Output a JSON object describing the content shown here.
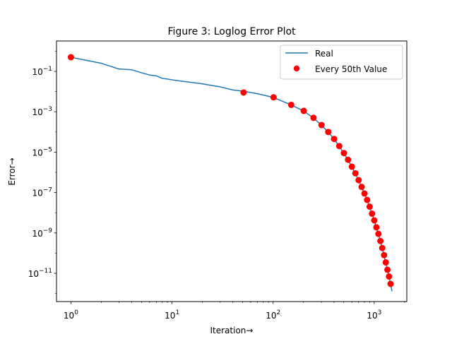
{
  "chart_data": {
    "type": "line",
    "title": "Figure 3: Loglog Error Plot",
    "xlabel": "Iteration→",
    "ylabel": "Error→",
    "xscale": "log",
    "yscale": "log",
    "xlim": [
      0.72,
      2100
    ],
    "ylim": [
      4e-13,
      3.2
    ],
    "grid": false,
    "legend_position": "top-right",
    "x_ticks": [
      {
        "value": 1,
        "base": "10",
        "exp": "0"
      },
      {
        "value": 10,
        "base": "10",
        "exp": "1"
      },
      {
        "value": 100,
        "base": "10",
        "exp": "2"
      },
      {
        "value": 1000,
        "base": "10",
        "exp": "3"
      }
    ],
    "y_ticks": [
      {
        "value": 0.1,
        "base": "10",
        "exp": "−1"
      },
      {
        "value": 0.001,
        "base": "10",
        "exp": "−3"
      },
      {
        "value": 1e-05,
        "base": "10",
        "exp": "−5"
      },
      {
        "value": 1e-07,
        "base": "10",
        "exp": "−7"
      },
      {
        "value": 1e-09,
        "base": "10",
        "exp": "−9"
      },
      {
        "value": 1e-11,
        "base": "10",
        "exp": "−11"
      }
    ],
    "series": [
      {
        "name": "Real",
        "kind": "line",
        "color": "#1f77b4",
        "x": [
          1,
          2,
          3,
          4,
          5,
          6,
          7,
          8,
          9,
          10,
          15,
          20,
          30,
          40,
          50,
          70,
          100,
          150,
          200,
          250,
          300,
          350,
          400,
          450,
          500,
          550,
          600,
          650,
          700,
          750,
          800,
          850,
          900,
          950,
          1000,
          1050,
          1100,
          1150,
          1200,
          1250,
          1300,
          1350,
          1400,
          1450,
          1500
        ],
        "y": [
          0.5,
          0.25,
          0.13,
          0.12,
          0.085,
          0.066,
          0.06,
          0.045,
          0.042,
          0.038,
          0.029,
          0.024,
          0.017,
          0.012,
          0.0105,
          0.0078,
          0.0052,
          0.0022,
          0.0011,
          0.0005,
          0.00022,
          0.0001,
          4.5e-05,
          2e-05,
          9e-06,
          4.2e-06,
          1.9e-06,
          9e-07,
          4.1e-07,
          1.9e-07,
          9e-08,
          4.3e-08,
          2e-08,
          9e-09,
          4.2e-09,
          1.9e-09,
          9e-10,
          4e-10,
          1.8e-10,
          8e-11,
          3.5e-11,
          1.5e-11,
          7e-12,
          3e-12,
          1.3e-12
        ]
      },
      {
        "name": "Every 50th Value",
        "kind": "scatter",
        "color": "#ff0000",
        "x": [
          1,
          51,
          101,
          151,
          201,
          251,
          301,
          351,
          401,
          451,
          501,
          551,
          601,
          651,
          701,
          751,
          801,
          851,
          901,
          951,
          1001,
          1051,
          1101,
          1151,
          1201,
          1251,
          1301,
          1351,
          1401,
          1451
        ],
        "y": [
          0.5,
          0.009,
          0.0052,
          0.0022,
          0.0011,
          0.0005,
          0.00022,
          0.0001,
          4.5e-05,
          2e-05,
          9e-06,
          4.2e-06,
          1.9e-06,
          9e-07,
          4.1e-07,
          1.9e-07,
          9e-08,
          4.3e-08,
          2e-08,
          9e-09,
          4.2e-09,
          1.9e-09,
          9e-10,
          4e-10,
          1.8e-10,
          8e-11,
          3.5e-11,
          1.5e-11,
          7e-12,
          3e-12
        ]
      }
    ]
  }
}
